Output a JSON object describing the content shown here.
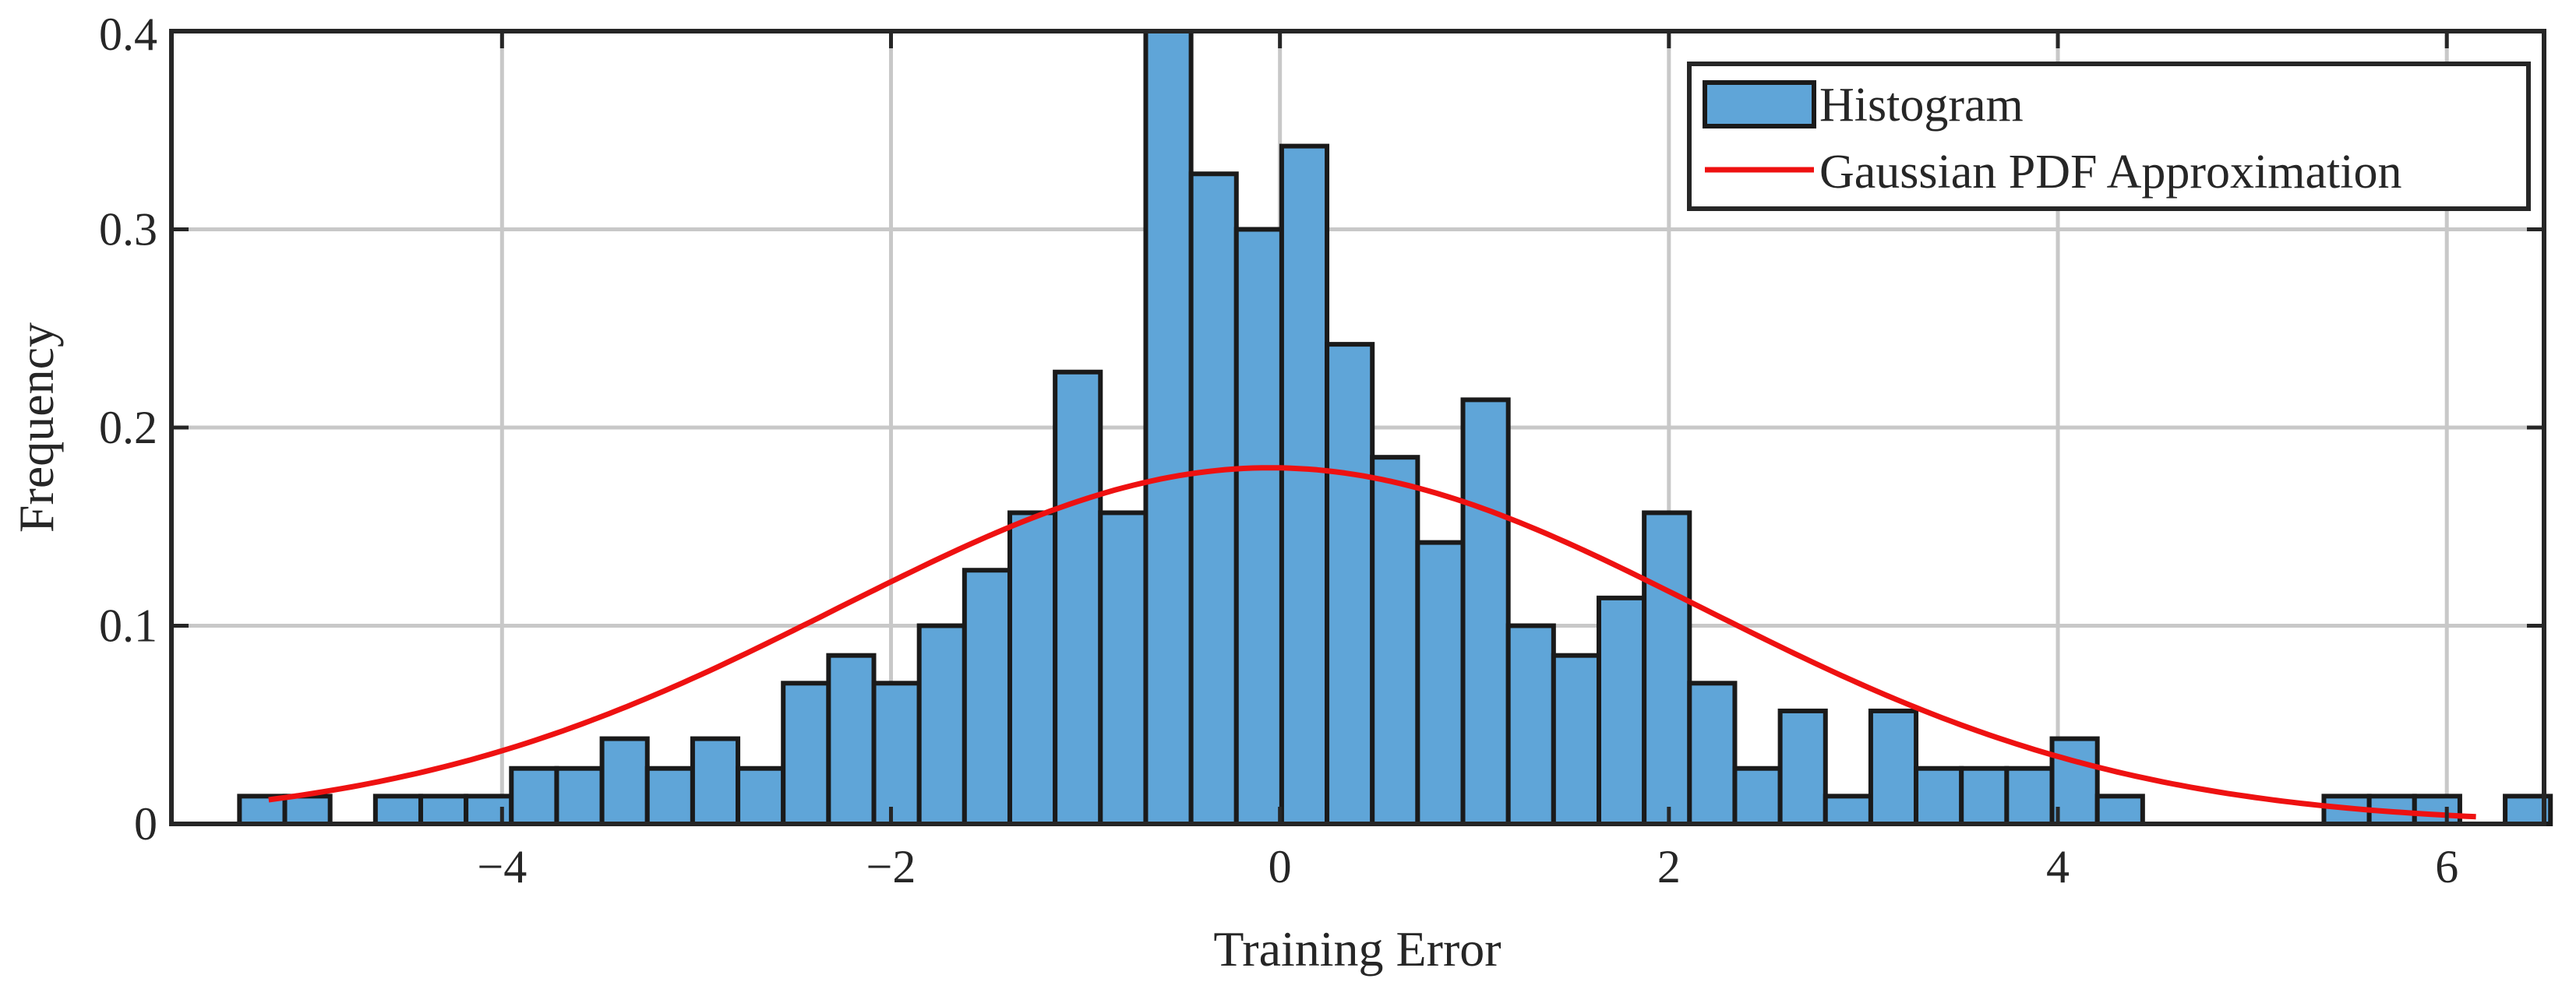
{
  "chart_data": {
    "type": "bar",
    "xlabel": "Training Error",
    "ylabel": "Frequency",
    "xlim": [
      -5.7,
      6.5
    ],
    "ylim": [
      0,
      0.4
    ],
    "xticks": [
      -4,
      -2,
      0,
      2,
      4,
      6
    ],
    "xtick_labels": [
      "−4",
      "−2",
      "0",
      "2",
      "4",
      "6"
    ],
    "yticks": [
      0,
      0.1,
      0.2,
      0.3,
      0.4
    ],
    "ytick_labels": [
      "0",
      "0.1",
      "0.2",
      "0.3",
      "0.4"
    ],
    "grid": true,
    "legend_position": "top-right",
    "bin_start": -5.35,
    "bin_width": 0.233,
    "series": [
      {
        "name": "Histogram",
        "type": "histogram",
        "color": "#5fa5d8",
        "edge_color": "#1a1a1a",
        "values": [
          0.014,
          0.014,
          0,
          0.014,
          0.014,
          0.014,
          0.028,
          0.028,
          0.043,
          0.028,
          0.043,
          0.028,
          0.071,
          0.085,
          0.071,
          0.1,
          0.128,
          0.157,
          0.228,
          0.157,
          0.4,
          0.328,
          0.3,
          0.342,
          0.242,
          0.185,
          0.142,
          0.214,
          0.1,
          0.085,
          0.114,
          0.157,
          0.071,
          0.028,
          0.057,
          0.014,
          0.057,
          0.028,
          0.028,
          0.028,
          0.043,
          0.014,
          0,
          0,
          0,
          0,
          0.014,
          0.014,
          0.014,
          0,
          0.014
        ]
      },
      {
        "name": "Gaussian PDF Approximation",
        "type": "line",
        "color": "#ee1111",
        "mean": -0.05,
        "std": 2.22,
        "x_range": [
          -5.2,
          6.15
        ]
      }
    ]
  }
}
